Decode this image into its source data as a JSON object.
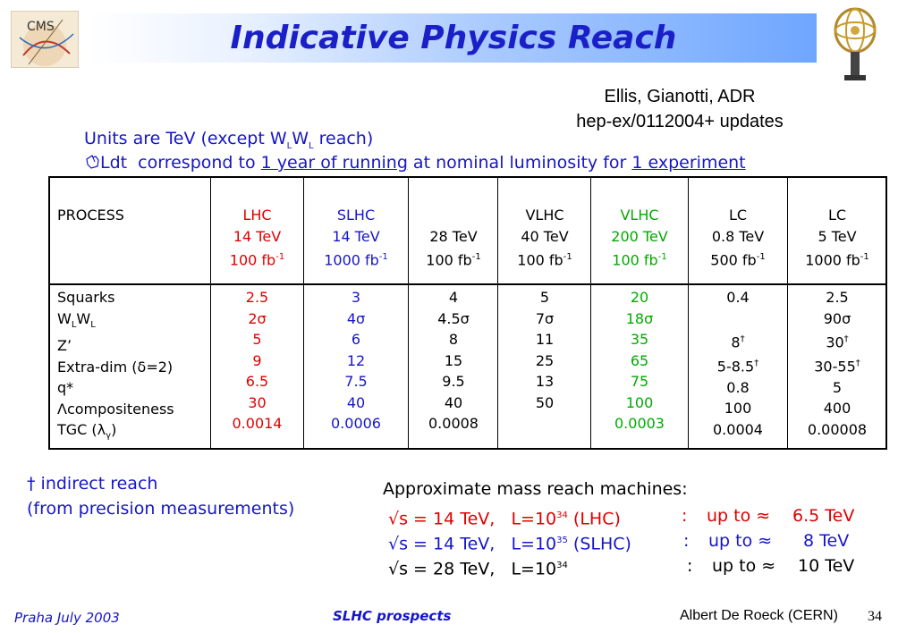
{
  "title": "Indicative Physics Reach",
  "logos": {
    "left": "CMS",
    "right": "atlas-logo"
  },
  "reference": {
    "line1": "Ellis, Gianotti, ADR",
    "line2": "hep-ex/0112004+ updates"
  },
  "units_note": {
    "prefix": "Units are TeV (except W",
    "sub1": "L",
    "mid": "W",
    "sub2": "L",
    "suffix": " reach)"
  },
  "ldt_note": {
    "icon": "hand-pointer-icon",
    "pre": "Ldt  correspond to ",
    "link1": "1 year of running",
    "mid": " at nominal luminosity for ",
    "link2": "1 experiment"
  },
  "table": {
    "header": {
      "process": "PROCESS",
      "lhc": {
        "name": "LHC",
        "energy": "14 TeV",
        "lumi": "100 fb",
        "exp": "-1"
      },
      "slhc": {
        "name": "SLHC",
        "energy": "14 TeV",
        "lumi": "1000 fb",
        "exp": "-1"
      },
      "c28": {
        "name": "",
        "energy": "28 TeV",
        "lumi": "100 fb",
        "exp": "-1"
      },
      "vlhc40": {
        "name": "VLHC",
        "energy": "40 TeV",
        "lumi": "100 fb",
        "exp": "-1"
      },
      "vlhc200": {
        "name": "VLHC",
        "energy": "200 TeV",
        "lumi": "100 fb",
        "exp": "-1"
      },
      "lc08": {
        "name": "LC",
        "energy": "0.8 TeV",
        "lumi": "500 fb",
        "exp": "-1"
      },
      "lc5": {
        "name": "LC",
        "energy": "5 TeV",
        "lumi": "1000 fb",
        "exp": "-1"
      }
    },
    "processes": {
      "squarks": "Squarks",
      "wlwl": {
        "w1": "W",
        "s1": "L",
        "w2": "W",
        "s2": "L"
      },
      "zprime": "Z’",
      "extradim": {
        "pre": "Extra-dim (",
        "sym": "δ",
        "post": "=2)"
      },
      "qstar": "q*",
      "compositeness": {
        "sym": "Λ",
        "text": "compositeness"
      },
      "tgc": {
        "pre": "TGC (",
        "sym": "λ",
        "sub": "γ",
        "post": ")"
      }
    },
    "values": {
      "lhc": [
        "2.5",
        "2σ",
        "5",
        "9",
        "6.5",
        "30",
        "0.0014"
      ],
      "slhc": [
        "3",
        "4σ",
        "6",
        "12",
        "7.5",
        "40",
        "0.0006"
      ],
      "c28": [
        "4",
        "4.5σ",
        "8",
        "15",
        "9.5",
        "40",
        "0.0008"
      ],
      "vlhc40": [
        "5",
        "7σ",
        "11",
        "25",
        "13",
        "50",
        ""
      ],
      "vlhc200": [
        "20",
        "18σ",
        "35",
        "65",
        "75",
        "100",
        "0.0003"
      ],
      "lc08": [
        "0.4",
        "",
        "8†",
        "5-8.5†",
        "0.8",
        "100",
        "0.0004"
      ],
      "lc5": [
        "2.5",
        "90σ",
        "30†",
        "30-55†",
        "5",
        "400",
        "0.00008"
      ]
    }
  },
  "dagger_note": {
    "line1": "† indirect reach",
    "line2": "(from precision measurements)"
  },
  "mass_reach": {
    "heading": "Approximate mass reach machines:",
    "rows": [
      {
        "sqrt": "√",
        "s": "s = 14 TeV,",
        "L": "L=10",
        "exp": "34",
        "machine": " (LHC)",
        "colon": ":",
        "upto": "up to ≈",
        "val": "6.5 TeV"
      },
      {
        "sqrt": "√",
        "s": "s = 14 TeV,",
        "L": "L=10",
        "exp": "35",
        "machine": " (SLHC)",
        "colon": ":",
        "upto": "up to ≈",
        "val": "8 TeV"
      },
      {
        "sqrt": "√",
        "s": "s = 28 TeV,",
        "L": "L=10",
        "exp": "34",
        "machine": "",
        "colon": ":",
        "upto": "up to ≈",
        "val": "10 TeV"
      }
    ]
  },
  "footer": {
    "left": "Praha July 2003",
    "center": "SLHC prospects",
    "right": "Albert De Roeck (CERN)",
    "page": "34"
  },
  "colors": {
    "lhc": "#e00000",
    "slhc": "#1616c8",
    "vlhc200": "#00aa00",
    "title": "#1a1fc8"
  }
}
